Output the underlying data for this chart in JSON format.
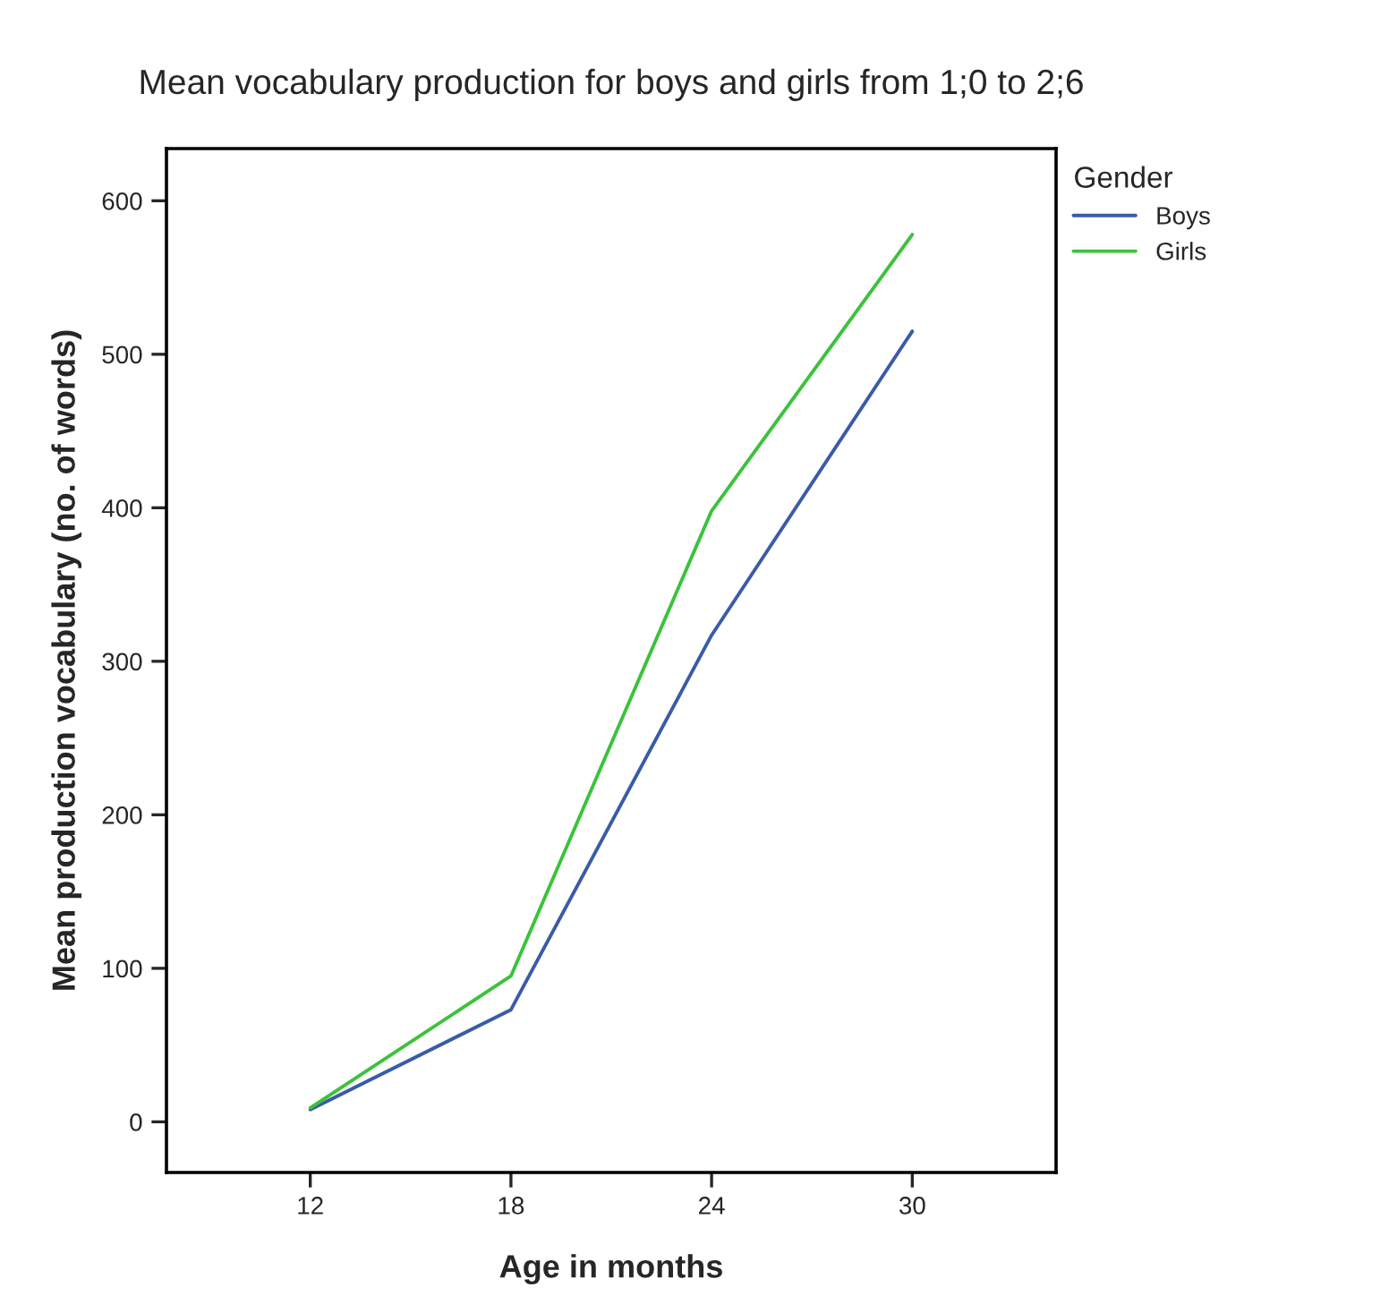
{
  "chart_data": {
    "type": "line",
    "title": "Mean vocabulary production for boys and girls from 1;0 to 2;6",
    "xlabel": "Age in months",
    "ylabel": "Mean production vocabulary (no. of words)",
    "legend_title": "Gender",
    "x": [
      12,
      18,
      24,
      30
    ],
    "series": [
      {
        "name": "Boys",
        "color": "#3a5ba8",
        "values": [
          8,
          73,
          317,
          515
        ]
      },
      {
        "name": "Girls",
        "color": "#3cc23c",
        "values": [
          9,
          95,
          398,
          578
        ]
      }
    ],
    "xlim": [
      7.7,
      34.3
    ],
    "xticks": [
      12,
      18,
      24,
      30
    ],
    "ylim": [
      -33,
      634
    ],
    "yticks": [
      0,
      100,
      200,
      300,
      400,
      500,
      600
    ],
    "grid": false,
    "legend": "top right",
    "line_style": "solid",
    "marker": "none"
  }
}
